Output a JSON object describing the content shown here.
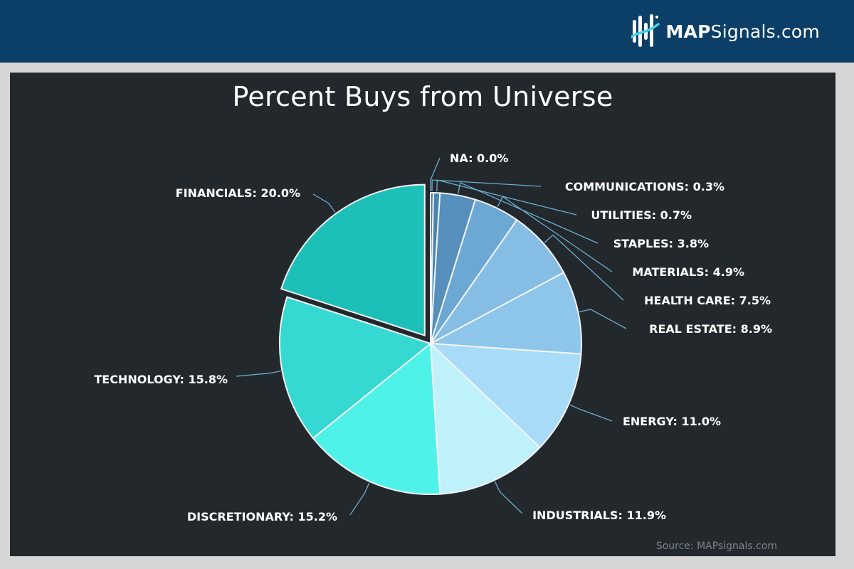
{
  "brand": {
    "name_bold": "MAP",
    "name_rest": "Signals.com"
  },
  "source": "Source: MAPsignals.com",
  "colors": {
    "header_bg": "#0b3f68",
    "panel_bg": "#23282d",
    "slice_border": "#f2f4f5",
    "leader": "#6aaecf"
  },
  "chart_data": {
    "type": "pie",
    "title": "Percent Buys from Universe",
    "start_angle_deg": 0,
    "direction": "clockwise",
    "slices": [
      {
        "label": "NA",
        "value": 0.0,
        "display": "NA: 0.0%",
        "color": "#3f7fa8"
      },
      {
        "label": "COMMUNICATIONS",
        "value": 0.3,
        "display": "COMMUNICATIONS: 0.3%",
        "color": "#3c78a4"
      },
      {
        "label": "UTILITIES",
        "value": 0.7,
        "display": "UTILITIES: 0.7%",
        "color": "#4884b0"
      },
      {
        "label": "STAPLES",
        "value": 3.8,
        "display": "STAPLES: 3.8%",
        "color": "#568fbb"
      },
      {
        "label": "MATERIALS",
        "value": 4.9,
        "display": "MATERIALS: 4.9%",
        "color": "#6ca8d4"
      },
      {
        "label": "HEALTH CARE",
        "value": 7.5,
        "display": "HEALTH CARE: 7.5%",
        "color": "#86bde4"
      },
      {
        "label": "REAL ESTATE",
        "value": 8.9,
        "display": "REAL ESTATE: 8.9%",
        "color": "#8ec5ea"
      },
      {
        "label": "ENERGY",
        "value": 11.0,
        "display": "ENERGY: 11.0%",
        "color": "#a8dbf7"
      },
      {
        "label": "INDUSTRIALS",
        "value": 11.9,
        "display": "INDUSTRIALS: 11.9%",
        "color": "#bff1fb"
      },
      {
        "label": "DISCRETIONARY",
        "value": 15.2,
        "display": "DISCRETIONARY: 15.2%",
        "color": "#4ff2e9"
      },
      {
        "label": "TECHNOLOGY",
        "value": 15.8,
        "display": "TECHNOLOGY: 15.8%",
        "color": "#35d9d2"
      },
      {
        "label": "FINANCIALS",
        "value": 20.0,
        "display": "FINANCIALS: 20.0%",
        "color": "#1cc0b8",
        "exploded": true
      }
    ]
  }
}
